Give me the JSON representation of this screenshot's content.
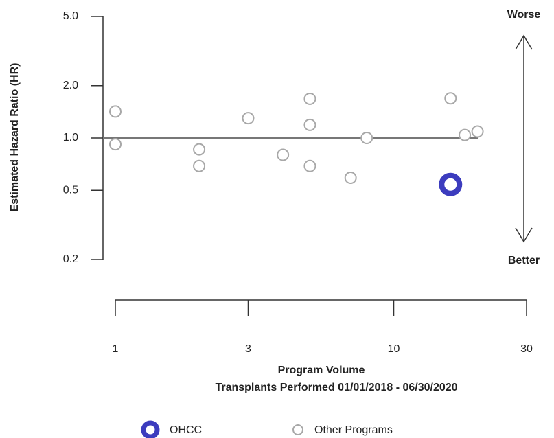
{
  "chart_data": {
    "type": "scatter",
    "x_label": "Program Volume",
    "x_sublabel": "Transplants Performed 01/01/2018 - 06/30/2020",
    "y_label": "Estimated Hazard Ratio (HR)",
    "annotations": {
      "top": "Worse",
      "bottom": "Better"
    },
    "xlog": true,
    "ylog": true,
    "xlim": [
      1,
      30
    ],
    "ylim": [
      0.2,
      5
    ],
    "xticks": [
      1,
      3,
      10,
      30
    ],
    "yticks": [
      {
        "value": 5,
        "label": "5.0"
      },
      {
        "value": 2,
        "label": "2.0"
      },
      {
        "value": 1,
        "label": "1.0"
      },
      0.5,
      0.2
    ],
    "hline": 1,
    "series": [
      {
        "name": "OHCC",
        "color": "#3c3cbe",
        "x": [
          16
        ],
        "values": [
          0.54
        ]
      },
      {
        "name": "Other Programs",
        "color": "#a8a8a8",
        "x": [
          1,
          1,
          2,
          2,
          3,
          4,
          5,
          5,
          5,
          7,
          8,
          16,
          18,
          20
        ],
        "values": [
          1.42,
          0.92,
          0.86,
          0.69,
          1.3,
          0.8,
          1.68,
          1.19,
          0.69,
          0.59,
          1.0,
          1.69,
          1.04,
          1.09
        ]
      }
    ]
  }
}
